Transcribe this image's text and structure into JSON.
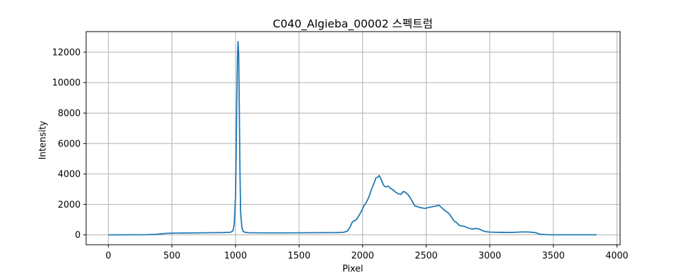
{
  "chart_data": {
    "type": "line",
    "title": "C040_Algieba_00002 스펙트럼",
    "xlabel": "Pixel",
    "ylabel": "Intensity",
    "xlim": [
      -175,
      4025
    ],
    "ylim": [
      -650,
      13350
    ],
    "xticks": [
      0,
      500,
      1000,
      1500,
      2000,
      2500,
      3000,
      3500,
      4000
    ],
    "yticks": [
      0,
      2000,
      4000,
      6000,
      8000,
      10000,
      12000
    ],
    "xtick_labels": [
      "0",
      "500",
      "1000",
      "1500",
      "2000",
      "2500",
      "3000",
      "3500",
      "4000"
    ],
    "ytick_labels": [
      "0",
      "2000",
      "4000",
      "6000",
      "8000",
      "10000",
      "12000"
    ],
    "grid": true,
    "series": [
      {
        "color": "#1f77b4",
        "x": [
          0,
          300,
          380,
          420,
          460,
          500,
          600,
          700,
          800,
          900,
          960,
          980,
          990,
          1000,
          1005,
          1010,
          1015,
          1020,
          1025,
          1030,
          1035,
          1040,
          1050,
          1060,
          1080,
          1100,
          1200,
          1400,
          1600,
          1800,
          1850,
          1880,
          1900,
          1920,
          1935,
          1950,
          1970,
          1990,
          2010,
          2030,
          2050,
          2070,
          2090,
          2105,
          2120,
          2130,
          2140,
          2150,
          2165,
          2180,
          2200,
          2220,
          2240,
          2260,
          2280,
          2300,
          2320,
          2335,
          2350,
          2370,
          2390,
          2410,
          2430,
          2460,
          2490,
          2520,
          2550,
          2580,
          2600,
          2620,
          2640,
          2660,
          2680,
          2700,
          2720,
          2740,
          2760,
          2780,
          2800,
          2830,
          2860,
          2890,
          2920,
          2950,
          2980,
          3000,
          3050,
          3100,
          3150,
          3200,
          3250,
          3300,
          3330,
          3360,
          3380,
          3400,
          3430,
          3460,
          3500,
          3600,
          3700,
          3800,
          3840
        ],
        "y": [
          0,
          10,
          40,
          70,
          100,
          110,
          120,
          130,
          140,
          150,
          170,
          260,
          700,
          2500,
          5200,
          8800,
          11600,
          12700,
          11800,
          8200,
          4200,
          1500,
          500,
          220,
          160,
          140,
          130,
          130,
          140,
          150,
          170,
          240,
          500,
          860,
          920,
          1000,
          1250,
          1550,
          1900,
          2150,
          2500,
          3000,
          3400,
          3750,
          3800,
          3900,
          3750,
          3550,
          3250,
          3150,
          3200,
          3050,
          2950,
          2800,
          2700,
          2650,
          2850,
          2800,
          2700,
          2500,
          2200,
          1900,
          1850,
          1780,
          1740,
          1800,
          1850,
          1900,
          1950,
          1800,
          1650,
          1520,
          1400,
          1150,
          900,
          800,
          620,
          580,
          560,
          450,
          380,
          420,
          370,
          250,
          200,
          180,
          170,
          160,
          155,
          170,
          190,
          190,
          170,
          140,
          90,
          40,
          20,
          10,
          5,
          5,
          5,
          5,
          5
        ]
      }
    ]
  }
}
